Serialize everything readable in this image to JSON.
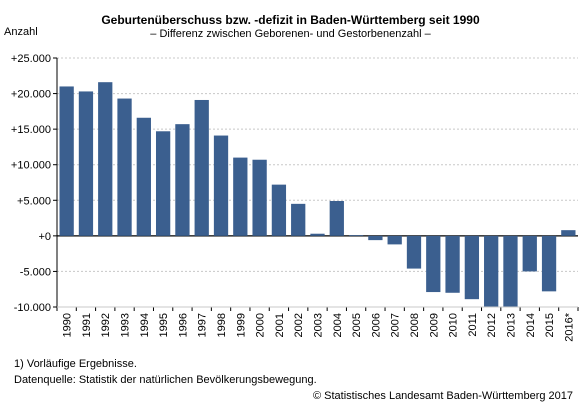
{
  "chart_data": {
    "type": "bar",
    "title": "Geburtenüberschuss bzw. -defizit in Baden-Württemberg seit 1990",
    "subtitle": "– Differenz zwischen Geborenen- und Gestorbenenzahl –",
    "ylabel": "Anzahl",
    "xlabel": "",
    "ylim": [
      -10000,
      25000
    ],
    "yticks": [
      25000,
      20000,
      15000,
      10000,
      5000,
      0,
      -5000,
      -10000
    ],
    "ytick_labels": [
      "+25.000",
      "+20.000",
      "+15.000",
      "+10.000",
      "+5.000",
      "+0",
      "-5.000",
      "-10.000"
    ],
    "categories": [
      "1990",
      "1991",
      "1992",
      "1993",
      "1994",
      "1995",
      "1996",
      "1997",
      "1998",
      "1999",
      "2000",
      "2001",
      "2002",
      "2003",
      "2004",
      "2005",
      "2006",
      "2007",
      "2008",
      "2009",
      "2010",
      "2011",
      "2012",
      "2013",
      "2014",
      "2015",
      "2016*"
    ],
    "values": [
      21000,
      20300,
      21600,
      19300,
      16600,
      14700,
      15700,
      19100,
      14100,
      11000,
      10700,
      7200,
      4500,
      300,
      4900,
      100,
      -600,
      -1200,
      -4600,
      -7900,
      -8000,
      -8900,
      -10000,
      -10000,
      -5000,
      -7800,
      800
    ],
    "bar_color": "#3b5f8f",
    "grid": true,
    "legend": "none"
  },
  "notes": {
    "footnote": "1) Vorläufige Ergebnisse.",
    "source": "Datenquelle: Statistik der natürlichen Bevölkerungsbewegung.",
    "copyright": "© Statistisches Landesamt Baden-Württemberg 2017"
  }
}
